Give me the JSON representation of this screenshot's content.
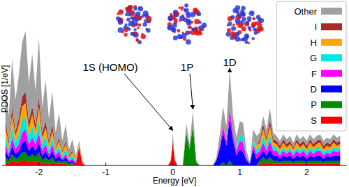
{
  "chart_data": {
    "type": "area",
    "stacked": true,
    "x_label": "Energy [eV]",
    "y_label": "PDOS [1/eV]",
    "xlim": [
      -2.55,
      2.6
    ],
    "xticks": [
      -2,
      -1,
      0,
      1,
      2
    ],
    "ylim": [
      0,
      10
    ],
    "tick_labels": "x",
    "grid": false,
    "legend": "top-right",
    "annotations": [
      {
        "text": "1S (HOMO)",
        "x": 0
      },
      {
        "text": "1P",
        "x": 0.3
      },
      {
        "text": "1D",
        "x": 0.85
      }
    ],
    "x": [
      -2.5,
      -2.45,
      -2.4,
      -2.35,
      -2.3,
      -2.25,
      -2.2,
      -2.15,
      -2.1,
      -2.05,
      -2.0,
      -1.95,
      -1.9,
      -1.85,
      -1.8,
      -1.75,
      -1.7,
      -1.65,
      -1.6,
      -1.55,
      -1.5,
      -1.45,
      -1.4,
      -1.35,
      -1.3,
      -0.07,
      -0.03,
      0,
      0.03,
      0.07,
      0.15,
      0.2,
      0.25,
      0.3,
      0.35,
      0.4,
      0.6,
      0.65,
      0.7,
      0.75,
      0.8,
      0.85,
      0.9,
      0.95,
      1.0,
      1.05,
      1.1,
      1.15,
      1.2,
      1.25,
      1.3,
      1.35,
      1.4,
      1.45,
      1.5,
      1.55,
      1.6,
      1.65,
      1.7,
      1.75,
      1.8,
      1.85,
      1.9,
      1.95,
      2.0,
      2.05,
      2.1,
      2.15,
      2.2,
      2.25,
      2.3,
      2.35,
      2.4,
      2.45,
      2.5
    ],
    "series": [
      {
        "name": "S",
        "color": "#ff0000",
        "values": [
          0.2,
          0.1,
          0.3,
          0.2,
          0.2,
          0.3,
          0.3,
          0.2,
          0.3,
          0.2,
          0.3,
          0.1,
          0.2,
          0.1,
          0.2,
          0.1,
          0.1,
          0.1,
          0.1,
          0,
          0.1,
          0,
          1.1,
          0.1,
          0,
          0,
          0.3,
          1.4,
          0.3,
          0,
          0,
          0,
          0,
          0,
          0,
          0,
          0,
          0,
          0,
          0,
          0,
          0,
          0,
          0,
          0,
          0,
          0,
          0,
          0,
          0,
          0.1,
          0.2,
          0.1,
          0.2,
          0.1,
          0.1,
          0.1,
          0.1,
          0.1,
          0.1,
          0.1,
          0.1,
          0.1,
          0.1,
          0.1,
          0.1,
          0.1,
          0.1,
          0.1,
          0.1,
          0.1,
          0.1,
          0.1,
          0.1,
          0.1
        ]
      },
      {
        "name": "P",
        "color": "#008a00",
        "values": [
          0.3,
          0.2,
          0.4,
          0.2,
          0.3,
          0.5,
          0.5,
          0.3,
          0.4,
          0.3,
          0.5,
          0.2,
          0.3,
          0.2,
          0.3,
          0.1,
          0.2,
          0.1,
          0.2,
          0.1,
          0.1,
          0,
          0.1,
          0,
          0,
          0,
          0,
          0,
          0,
          0,
          0,
          2.0,
          1.0,
          2.4,
          0.2,
          0,
          0,
          0,
          0,
          0.2,
          0,
          0.3,
          0,
          0,
          0,
          0,
          0,
          0,
          0,
          0,
          0.2,
          0.3,
          0.2,
          0.3,
          0.2,
          0.2,
          0.1,
          0.2,
          0.2,
          0.2,
          0.1,
          0.2,
          0.2,
          0.2,
          0.1,
          0.2,
          0.2,
          0.2,
          0.2,
          0.1,
          0.2,
          0.2,
          0.2,
          0.2,
          0.2
        ]
      },
      {
        "name": "D",
        "color": "#0000ff",
        "values": [
          0.4,
          0.2,
          0.5,
          0.3,
          0.4,
          0.6,
          0.7,
          0.4,
          0.5,
          0.4,
          0.6,
          0.3,
          0.4,
          0.2,
          0.4,
          0.2,
          0.3,
          0.1,
          0.2,
          0.1,
          0.1,
          0.1,
          0,
          0,
          0,
          0,
          0,
          0,
          0,
          0,
          0,
          0,
          0,
          0,
          0,
          0,
          0,
          0.3,
          1.0,
          1.8,
          1.2,
          2.6,
          1.5,
          0.6,
          1.0,
          0.8,
          0.3,
          0.1,
          1.0,
          0.4,
          0.3,
          0.4,
          0.3,
          0.5,
          0.3,
          0.3,
          0.2,
          0.3,
          0.2,
          0.3,
          0.2,
          0.3,
          0.2,
          0.3,
          0.2,
          0.3,
          0.2,
          0.3,
          0.3,
          0.2,
          0.3,
          0.2,
          0.3,
          0.3,
          0.3
        ]
      },
      {
        "name": "F",
        "color": "#ff00ff",
        "values": [
          0.4,
          0.2,
          0.5,
          0.3,
          0.4,
          0.6,
          0.7,
          0.4,
          0.5,
          0.4,
          0.6,
          0.3,
          0.4,
          0.2,
          0.4,
          0.2,
          0.3,
          0.1,
          0.2,
          0.1,
          0.1,
          0.1,
          0,
          0,
          0,
          0,
          0,
          0,
          0,
          0,
          0,
          0,
          0,
          0,
          0,
          0,
          0,
          0,
          0.2,
          0.4,
          0.3,
          0.6,
          0.4,
          0.3,
          0.5,
          0.6,
          0.2,
          0,
          0.3,
          0.3,
          0.3,
          0.5,
          0.3,
          0.5,
          0.3,
          0.3,
          0.2,
          0.3,
          0.2,
          0.3,
          0.2,
          0.3,
          0.2,
          0.3,
          0.2,
          0.3,
          0.2,
          0.3,
          0.3,
          0.2,
          0.2,
          0.2,
          0.3,
          0.2,
          0.3
        ]
      },
      {
        "name": "G",
        "color": "#00e6e6",
        "values": [
          0.5,
          0.3,
          0.7,
          0.4,
          0.6,
          0.8,
          0.8,
          0.5,
          0.7,
          0.4,
          0.8,
          0.4,
          0.5,
          0.3,
          0.4,
          0.2,
          0.3,
          0.2,
          0.3,
          0.1,
          0.2,
          0.1,
          0,
          0,
          0,
          0,
          0,
          0,
          0,
          0,
          0,
          0,
          0,
          0,
          0,
          0,
          0,
          0,
          0,
          0,
          0,
          0,
          0,
          0.2,
          0.3,
          0.4,
          0.1,
          0,
          0.2,
          0.3,
          0.2,
          0.4,
          0.3,
          0.4,
          0.2,
          0.2,
          0.2,
          0.2,
          0.2,
          0.2,
          0.2,
          0.2,
          0.2,
          0.2,
          0.2,
          0.2,
          0.2,
          0.2,
          0.2,
          0.2,
          0.2,
          0.2,
          0.2,
          0.2,
          0.2
        ]
      },
      {
        "name": "H",
        "color": "#ffa500",
        "values": [
          0.5,
          0.3,
          0.7,
          0.4,
          0.6,
          0.8,
          0.8,
          0.5,
          0.7,
          0.4,
          0.8,
          0.4,
          0.5,
          0.3,
          0.4,
          0.2,
          0.3,
          0.2,
          0.3,
          0.1,
          0.2,
          0.1,
          0.1,
          0,
          0,
          0,
          0,
          0,
          0,
          0,
          0,
          0,
          0,
          0,
          0,
          0,
          0,
          0,
          0,
          0,
          0,
          0,
          0,
          0,
          0,
          0,
          0,
          0,
          0,
          0.2,
          0.3,
          0.4,
          0.3,
          0.5,
          0.3,
          0.2,
          0.2,
          0.3,
          0.2,
          0.2,
          0.2,
          0.3,
          0.2,
          0.2,
          0.2,
          0.3,
          0.2,
          0.2,
          0.3,
          0.2,
          0.2,
          0.2,
          0.3,
          0.2,
          0.2
        ]
      },
      {
        "name": "I",
        "color": "#a52a2a",
        "values": [
          0.4,
          0.2,
          0.5,
          0.3,
          0.4,
          0.6,
          0.7,
          0.4,
          0.5,
          0.4,
          0.6,
          0.3,
          0.4,
          0.2,
          0.4,
          0.1,
          0.2,
          0.1,
          0.2,
          0.1,
          0.1,
          0,
          0,
          0,
          0,
          0,
          0,
          0,
          0,
          0,
          0,
          0,
          0,
          0,
          0,
          0,
          0,
          0,
          0,
          0,
          0,
          0,
          0,
          0,
          0,
          0,
          0,
          0,
          0,
          0,
          0.2,
          0.3,
          0.2,
          0.4,
          0.2,
          0.2,
          0.2,
          0.2,
          0.2,
          0.2,
          0.1,
          0.2,
          0.2,
          0.2,
          0.2,
          0.2,
          0.2,
          0.2,
          0.2,
          0.2,
          0.2,
          0.2,
          0.2,
          0.2,
          0.2
        ]
      },
      {
        "name": "Other",
        "color": "#a0a0a0",
        "values": [
          2.3,
          1.5,
          2.9,
          1.9,
          2.6,
          3.3,
          3.7,
          2.3,
          3.2,
          2.0,
          3.6,
          1.5,
          2.5,
          1.3,
          2.0,
          0.9,
          1.5,
          0.6,
          1.0,
          0.4,
          0.7,
          0.2,
          0.2,
          0.2,
          0,
          0,
          0,
          0.6,
          0.1,
          0,
          0,
          0.6,
          0.3,
          0.9,
          0.1,
          0,
          0,
          0.2,
          0.6,
          1.2,
          0.9,
          2.3,
          1.1,
          0.6,
          0.9,
          0.8,
          0.3,
          0.1,
          0.7,
          0.6,
          0.4,
          0.5,
          0.5,
          0.7,
          0.4,
          0.3,
          0.3,
          0.3,
          0.3,
          0.3,
          0.3,
          0.3,
          0.3,
          0.3,
          0.3,
          0.3,
          0.3,
          0.3,
          0.3,
          0.3,
          0.3,
          0.3,
          0.3,
          0.3,
          0.3
        ]
      }
    ]
  }
}
